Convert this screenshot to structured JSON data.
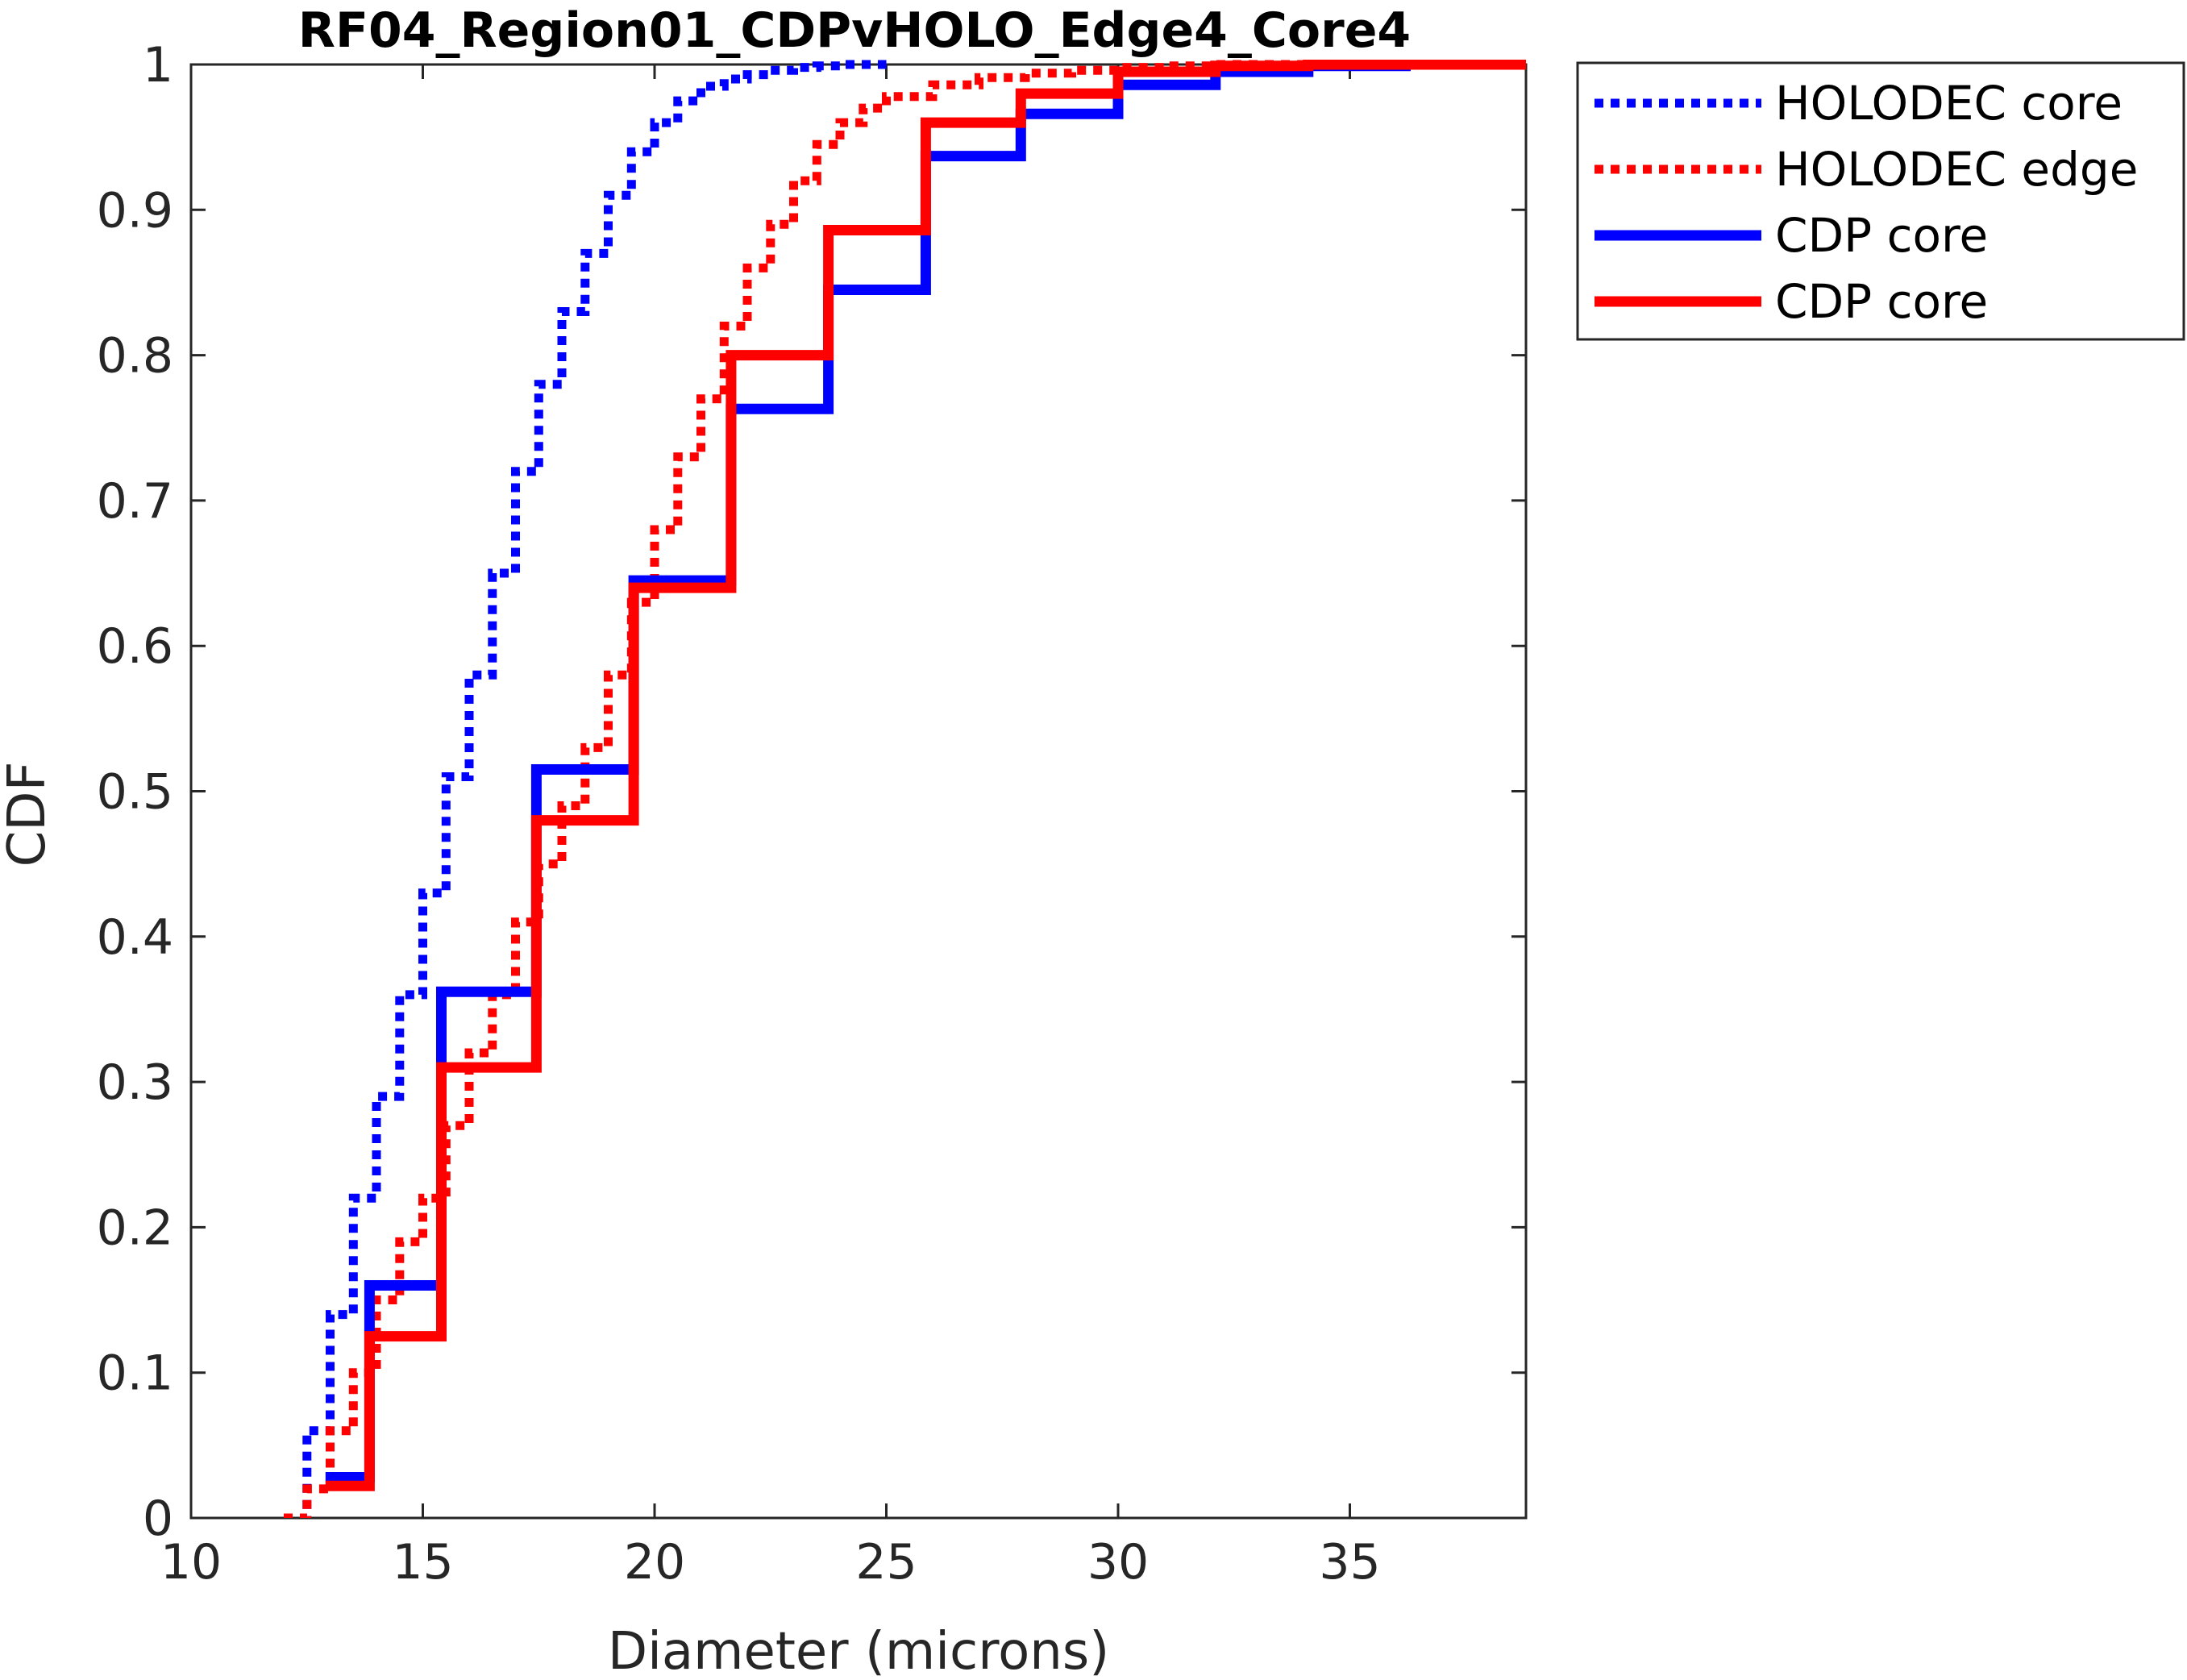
{
  "chart_data": {
    "type": "line",
    "title": "RF04_Region01_CDPvHOLO_Edge4_Core4",
    "xlabel": "Diameter (microns)",
    "ylabel": "CDF",
    "xlim": [
      10,
      38.8
    ],
    "ylim": [
      0,
      1
    ],
    "xticks": [
      10,
      15,
      20,
      25,
      30,
      35
    ],
    "yticks": [
      0,
      0.1,
      0.2,
      0.3,
      0.4,
      0.5,
      0.6,
      0.7,
      0.8,
      0.9,
      1
    ],
    "grid": false,
    "legend_position": "outside-top-right",
    "series": [
      {
        "name": "HOLODEC core",
        "color": "#0000ff",
        "style": "dotted",
        "step": true,
        "x": [
          12.0,
          12.5,
          13.0,
          13.5,
          14.0,
          14.5,
          15.0,
          15.5,
          16.0,
          16.5,
          17.0,
          17.5,
          18.0,
          18.5,
          19.0,
          19.5,
          20.0,
          20.5,
          21.0,
          21.5,
          22.0,
          22.5,
          23.0,
          23.5,
          24.0,
          24.5,
          25.0
        ],
        "y": [
          0.0,
          0.06,
          0.14,
          0.22,
          0.29,
          0.36,
          0.43,
          0.51,
          0.58,
          0.65,
          0.72,
          0.78,
          0.83,
          0.87,
          0.91,
          0.94,
          0.96,
          0.975,
          0.985,
          0.99,
          0.993,
          0.996,
          0.998,
          0.999,
          1.0,
          1.0,
          1.0
        ]
      },
      {
        "name": "HOLODEC edge",
        "color": "#ff0000",
        "style": "dotted",
        "step": true,
        "x": [
          12.0,
          12.5,
          13.0,
          13.5,
          14.0,
          14.5,
          15.0,
          15.5,
          16.0,
          16.5,
          17.0,
          17.5,
          18.0,
          18.5,
          19.0,
          19.5,
          20.0,
          20.5,
          21.0,
          21.5,
          22.0,
          22.5,
          23.0,
          23.5,
          24.0,
          24.5,
          25.0,
          26.0,
          27.0,
          28.0,
          29.0,
          30.0,
          31.0,
          32.0,
          34.0,
          36.0,
          38.8
        ],
        "y": [
          0.0,
          0.02,
          0.06,
          0.1,
          0.15,
          0.19,
          0.22,
          0.27,
          0.32,
          0.36,
          0.41,
          0.45,
          0.49,
          0.53,
          0.58,
          0.63,
          0.68,
          0.73,
          0.77,
          0.82,
          0.86,
          0.89,
          0.92,
          0.945,
          0.96,
          0.97,
          0.978,
          0.986,
          0.991,
          0.994,
          0.996,
          0.998,
          0.999,
          1.0,
          1.0,
          1.0,
          1.0
        ]
      },
      {
        "name": "CDP core",
        "color": "#0000ff",
        "style": "solid",
        "step": true,
        "x": [
          12.9,
          13.85,
          15.4,
          17.45,
          19.55,
          21.65,
          23.75,
          25.85,
          27.9,
          30.0,
          32.1,
          34.1,
          36.2,
          38.8
        ],
        "y": [
          0.028,
          0.16,
          0.362,
          0.515,
          0.645,
          0.763,
          0.845,
          0.937,
          0.966,
          0.986,
          0.995,
          0.999,
          1.0,
          1.0
        ]
      },
      {
        "name": "CDP core",
        "color": "#ff0000",
        "style": "solid",
        "step": true,
        "x": [
          12.9,
          13.85,
          15.4,
          17.45,
          19.55,
          21.65,
          23.75,
          25.85,
          27.9,
          30.0,
          32.1,
          34.1,
          36.2,
          38.8
        ],
        "y": [
          0.022,
          0.125,
          0.31,
          0.48,
          0.64,
          0.8,
          0.886,
          0.96,
          0.98,
          0.995,
          0.999,
          1.0,
          1.0,
          1.0
        ]
      }
    ]
  }
}
